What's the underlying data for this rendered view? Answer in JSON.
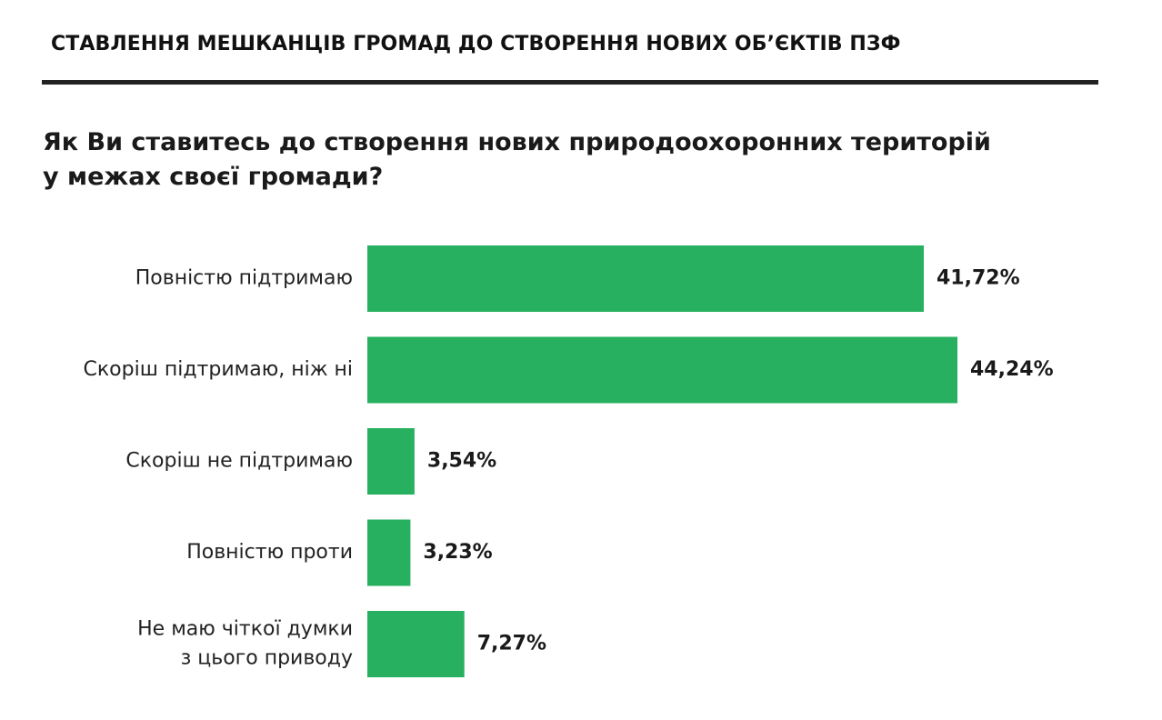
{
  "header": {
    "section_title": "СТАВЛЕННЯ МЕШКАНЦІВ ГРОМАД ДО СТВОРЕННЯ НОВИХ ОБ’ЄКТІВ ПЗФ"
  },
  "question": {
    "line1": "Як Ви ставитесь до створення нових природоохоронних територій",
    "line2": "у межах своєї громади?"
  },
  "colors": {
    "bar": "#27b05f",
    "rule": "#222222"
  },
  "chart_data": {
    "type": "bar",
    "orientation": "horizontal",
    "categories": [
      [
        "Повністю підтримаю"
      ],
      [
        "Скоріш підтримаю, ніж ні"
      ],
      [
        "Скоріш не підтримаю"
      ],
      [
        "Повністю проти"
      ],
      [
        "Не маю чіткої думки",
        "з цього приводу"
      ]
    ],
    "values": [
      41.72,
      44.24,
      3.54,
      3.23,
      7.27
    ],
    "value_labels": [
      "41,72%",
      "44,24%",
      "3,54%",
      "3,23%",
      "7,27%"
    ],
    "unit": "%",
    "grid": false,
    "legend": "none"
  }
}
